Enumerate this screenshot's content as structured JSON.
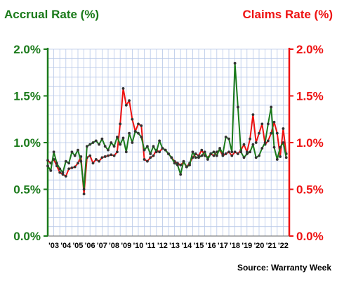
{
  "chart_data": {
    "type": "line",
    "left_title": "Accrual Rate (%)",
    "right_title": "Claims Rate (%)",
    "source": "Source: Warranty Week",
    "y_ticks": [
      "0.0%",
      "0.5%",
      "1.0%",
      "1.5%",
      "2.0%"
    ],
    "ylim": [
      0,
      2
    ],
    "xlim": [
      2003,
      2023
    ],
    "x_tick_labels": [
      "'03",
      "'04",
      "'05",
      "'06",
      "'07",
      "'08",
      "'09",
      "'10",
      "'11",
      "'12",
      "'13",
      "'14",
      "'15",
      "'16",
      "'17",
      "'18",
      "'19",
      "'20",
      "'21",
      "'22"
    ],
    "grid": true,
    "colors": {
      "accrual": "#1a7a1a",
      "claims": "#ee1111",
      "grid": "#b8c8e8",
      "left_axis": "#1a7a1a",
      "right_axis": "#ee1111"
    },
    "series": [
      {
        "key": "claims",
        "x": [
          2003.0,
          2003.25,
          2003.5,
          2003.75,
          2004.0,
          2004.25,
          2004.5,
          2004.75,
          2005.0,
          2005.25,
          2005.5,
          2005.75,
          2006.0,
          2006.25,
          2006.5,
          2006.75,
          2007.0,
          2007.25,
          2007.5,
          2007.75,
          2008.0,
          2008.25,
          2008.5,
          2008.75,
          2009.0,
          2009.25,
          2009.5,
          2009.75,
          2010.0,
          2010.25,
          2010.5,
          2010.75,
          2011.0,
          2011.25,
          2011.5,
          2011.75,
          2012.0,
          2012.25,
          2012.5,
          2012.75,
          2013.0,
          2013.25,
          2013.5,
          2013.75,
          2014.0,
          2014.25,
          2014.5,
          2014.75,
          2015.0,
          2015.25,
          2015.5,
          2015.75,
          2016.0,
          2016.25,
          2016.5,
          2016.75,
          2017.0,
          2017.25,
          2017.5,
          2017.75,
          2018.0,
          2018.25,
          2018.5,
          2018.75,
          2019.0,
          2019.25,
          2019.5,
          2019.75,
          2020.0,
          2020.25,
          2020.5,
          2020.75,
          2021.0,
          2021.25,
          2021.5,
          2021.75,
          2022.0,
          2022.25,
          2022.5,
          2022.75
        ],
        "y": [
          0.81,
          0.78,
          0.82,
          0.75,
          0.68,
          0.66,
          0.64,
          0.72,
          0.73,
          0.74,
          0.78,
          0.85,
          0.45,
          0.84,
          0.86,
          0.78,
          0.82,
          0.8,
          0.84,
          0.85,
          0.86,
          0.87,
          0.86,
          0.9,
          1.2,
          1.58,
          1.4,
          1.45,
          1.25,
          1.12,
          1.2,
          1.18,
          0.82,
          0.8,
          0.84,
          0.86,
          0.92,
          0.9,
          0.94,
          0.92,
          0.88,
          0.84,
          0.8,
          0.78,
          0.76,
          0.79,
          0.74,
          0.78,
          0.84,
          0.88,
          0.86,
          0.92,
          0.86,
          0.84,
          0.88,
          0.86,
          0.9,
          0.92,
          0.86,
          0.88,
          0.9,
          0.86,
          0.9,
          0.88,
          0.92,
          0.98,
          0.9,
          1.04,
          1.3,
          1.0,
          1.1,
          1.2,
          0.98,
          1.02,
          1.1,
          1.22,
          1.1,
          0.85,
          1.15,
          0.88
        ]
      },
      {
        "key": "accrual",
        "x": [
          2003.0,
          2003.25,
          2003.5,
          2003.75,
          2004.0,
          2004.25,
          2004.5,
          2004.75,
          2005.0,
          2005.25,
          2005.5,
          2005.75,
          2006.0,
          2006.25,
          2006.5,
          2006.75,
          2007.0,
          2007.25,
          2007.5,
          2007.75,
          2008.0,
          2008.25,
          2008.5,
          2008.75,
          2009.0,
          2009.25,
          2009.5,
          2009.75,
          2010.0,
          2010.25,
          2010.5,
          2010.75,
          2011.0,
          2011.25,
          2011.5,
          2011.75,
          2012.0,
          2012.25,
          2012.5,
          2012.75,
          2013.0,
          2013.25,
          2013.5,
          2013.75,
          2014.0,
          2014.25,
          2014.5,
          2014.75,
          2015.0,
          2015.25,
          2015.5,
          2015.75,
          2016.0,
          2016.25,
          2016.5,
          2016.75,
          2017.0,
          2017.25,
          2017.5,
          2017.75,
          2018.0,
          2018.25,
          2018.5,
          2018.75,
          2019.0,
          2019.25,
          2019.5,
          2019.75,
          2020.0,
          2020.25,
          2020.5,
          2020.75,
          2021.0,
          2021.25,
          2021.5,
          2021.75,
          2022.0,
          2022.25,
          2022.5,
          2022.75
        ],
        "y": [
          0.75,
          0.7,
          0.9,
          0.78,
          0.72,
          0.68,
          0.8,
          0.78,
          0.9,
          0.86,
          0.92,
          0.8,
          0.5,
          0.96,
          0.98,
          1.0,
          1.02,
          0.98,
          1.04,
          0.96,
          0.92,
          1.0,
          0.96,
          1.06,
          0.98,
          1.05,
          0.9,
          1.1,
          1.0,
          1.12,
          1.1,
          1.06,
          0.92,
          0.96,
          0.88,
          0.96,
          0.9,
          1.02,
          0.94,
          0.92,
          0.88,
          0.84,
          0.78,
          0.76,
          0.66,
          0.8,
          0.74,
          0.76,
          0.9,
          0.84,
          0.84,
          0.86,
          0.9,
          0.82,
          0.88,
          0.9,
          0.86,
          0.94,
          0.88,
          1.06,
          1.04,
          0.9,
          1.85,
          1.38,
          0.9,
          0.84,
          0.88,
          0.9,
          0.98,
          0.84,
          0.86,
          0.94,
          1.0,
          1.2,
          1.38,
          0.95,
          0.82,
          0.95,
          1.0,
          0.84
        ]
      }
    ]
  }
}
